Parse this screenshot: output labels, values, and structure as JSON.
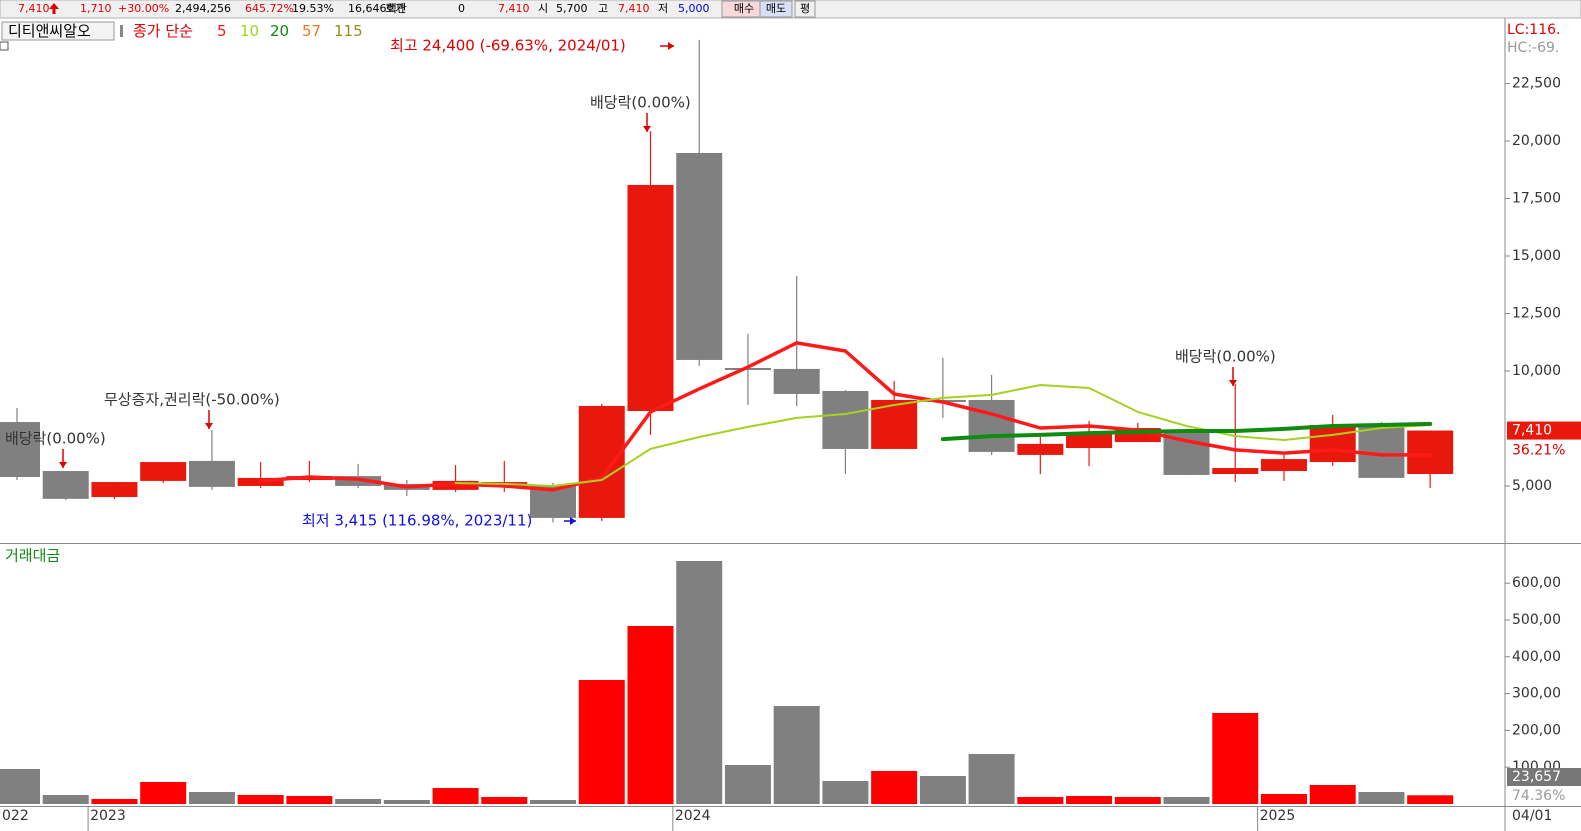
{
  "toolbar": {
    "items": [
      {
        "text": "7,410",
        "color": "#e00000"
      },
      {
        "text": "1,710",
        "color": "#e00000"
      },
      {
        "text": "+30.00%",
        "color": "#e00000"
      },
      {
        "text": "2,494,256",
        "color": "#000000"
      },
      {
        "text": "645.72%",
        "color": "#e00000"
      },
      {
        "text": "19.53%",
        "color": "#000000"
      },
      {
        "text": "16,646백만",
        "color": "#000000"
      },
      {
        "text": "호가",
        "color": "#000000"
      },
      {
        "text": "0",
        "color": "#000000"
      },
      {
        "text": "7,410",
        "color": "#e00000"
      },
      {
        "text": "시",
        "color": "#000000"
      },
      {
        "text": "5,700",
        "color": "#000000"
      },
      {
        "text": "고",
        "color": "#000000"
      },
      {
        "text": "7,410",
        "color": "#e00000"
      },
      {
        "text": "저",
        "color": "#000000"
      },
      {
        "text": "5,000",
        "color": "#0000e0"
      }
    ],
    "buttons": [
      "매수",
      "매도",
      "평"
    ]
  },
  "chart_data": [
    {
      "type": "candlestick",
      "stock": "디티앤씨알오",
      "indicator": "종가 단순",
      "categories": [
        "022",
        null,
        "2023",
        null,
        null,
        null,
        null,
        null,
        null,
        null,
        null,
        null,
        null,
        null,
        "2024",
        null,
        null,
        null,
        null,
        null,
        null,
        null,
        null,
        null,
        null,
        null,
        "2025",
        null,
        null,
        null
      ],
      "date_label": "04/01",
      "open": [
        7780,
        5650,
        4520,
        5220,
        6090,
        5000,
        5260,
        5430,
        5090,
        4830,
        4960,
        5000,
        3610,
        8260,
        19480,
        10130,
        10090,
        9130,
        6610,
        8740,
        8740,
        6350,
        6650,
        6910,
        7430,
        5520,
        5650,
        6040,
        7700,
        5520
      ],
      "high": [
        8390,
        5650,
        5170,
        6040,
        7430,
        6040,
        6090,
        5960,
        5260,
        5910,
        6090,
        5130,
        8570,
        20430,
        24400,
        11610,
        14130,
        9170,
        9570,
        10570,
        9830,
        7130,
        7830,
        7740,
        7480,
        9430,
        6350,
        8090,
        7780,
        7410
      ],
      "low": [
        5260,
        4390,
        4430,
        5130,
        4830,
        4910,
        5170,
        4910,
        4570,
        4740,
        4740,
        3415,
        3480,
        7220,
        10220,
        8520,
        8480,
        5520,
        6610,
        7960,
        6350,
        5520,
        5870,
        6910,
        5480,
        5170,
        5220,
        5870,
        5350,
        4910
      ],
      "close": [
        5390,
        4440,
        5170,
        6040,
        4960,
        5350,
        5430,
        5000,
        4830,
        5220,
        5170,
        3610,
        8480,
        18090,
        10480,
        10090,
        9000,
        6610,
        8740,
        8700,
        6480,
        6830,
        7300,
        7520,
        5480,
        5780,
        6170,
        7650,
        5350,
        7410
      ],
      "up_color": "#e8190c",
      "down_color": "#808080",
      "series": [
        {
          "name": "5",
          "color": "#ff1a1a",
          "values": [
            null,
            null,
            null,
            null,
            null,
            5220,
            5390,
            5300,
            4960,
            5090,
            5000,
            4830,
            5350,
            8220,
            9220,
            10170,
            11220,
            10870,
            9000,
            8650,
            8130,
            7520,
            7610,
            7430,
            6960,
            6570,
            6430,
            6570,
            6350,
            6350
          ]
        },
        {
          "name": "10",
          "color": "#a8d020",
          "values": [
            null,
            null,
            null,
            null,
            null,
            null,
            null,
            null,
            null,
            5130,
            5090,
            5000,
            5260,
            6610,
            7130,
            7570,
            7960,
            8130,
            8520,
            8830,
            8960,
            9390,
            9260,
            8220,
            7610,
            7170,
            7000,
            7220,
            7520,
            7650
          ]
        },
        {
          "name": "20",
          "color": "#108a10",
          "values": [
            null,
            null,
            null,
            null,
            null,
            null,
            null,
            null,
            null,
            null,
            null,
            null,
            null,
            null,
            null,
            null,
            null,
            null,
            null,
            7040,
            7170,
            7220,
            7300,
            7350,
            7390,
            7390,
            7480,
            7610,
            7650,
            7700
          ]
        },
        {
          "name": "57",
          "color": "#f07820",
          "values": [
            null,
            null,
            null,
            null,
            null,
            null,
            null,
            null,
            null,
            null,
            null,
            null,
            null,
            null,
            null,
            null,
            null,
            null,
            null,
            null,
            null,
            null,
            null,
            null,
            null,
            null,
            null,
            null,
            null,
            null
          ]
        },
        {
          "name": "115",
          "color": "#909020",
          "values": [
            null,
            null,
            null,
            null,
            null,
            null,
            null,
            null,
            null,
            null,
            null,
            null,
            null,
            null,
            null,
            null,
            null,
            null,
            null,
            null,
            null,
            null,
            null,
            null,
            null,
            null,
            null,
            null,
            null,
            null
          ]
        }
      ],
      "ylim": [
        2520,
        25350
      ],
      "yticks": [
        {
          "value": 22500,
          "label": "22,500"
        },
        {
          "value": 20000,
          "label": "20,000"
        },
        {
          "value": 17500,
          "label": "17,500"
        },
        {
          "value": 15000,
          "label": "15,000"
        },
        {
          "value": 12500,
          "label": "12,500"
        },
        {
          "value": 10000,
          "label": "10,000"
        },
        {
          "value": 5000,
          "label": "5,000"
        }
      ],
      "lc_label": "LC:116.",
      "hc_label": "HC:-69.",
      "price_tag": "7,410",
      "price_tag_pct": "36.21%",
      "annotations": [
        {
          "text": "배당락(0.00%)",
          "color": "#333333"
        },
        {
          "text": "무상증자,권리락(-50.00%)",
          "color": "#333333"
        },
        {
          "text": "배당락(0.00%)",
          "color": "#333333"
        },
        {
          "text": "최고 24,400 (-69.63%, 2024/01)",
          "color": "#e00000"
        },
        {
          "text": "최저 3,415 (116.98%, 2023/11)",
          "color": "#1010e0"
        },
        {
          "text": "배당락(0.00%)",
          "color": "#333333"
        }
      ]
    },
    {
      "type": "bar",
      "title": "거래대금",
      "title_color": "#108a10",
      "values": [
        95100,
        24500,
        13600,
        59800,
        32600,
        24500,
        21700,
        13600,
        10900,
        43500,
        19000,
        10900,
        337000,
        483700,
        660300,
        106000,
        266300,
        62500,
        89700,
        76100,
        135900,
        19000,
        21700,
        19000,
        19000,
        247300,
        27200,
        51600,
        32600,
        23657
      ],
      "up_color": "#ff0000",
      "down_color": "#808080",
      "ylim": [
        0,
        703800
      ],
      "yticks": [
        {
          "value": 600000,
          "label": "600,00"
        },
        {
          "value": 500000,
          "label": "500,00"
        },
        {
          "value": 400000,
          "label": "400,00"
        },
        {
          "value": 300000,
          "label": "300,00"
        },
        {
          "value": 200000,
          "label": "200,00"
        },
        {
          "value": 100000,
          "label": "100,00"
        }
      ],
      "volume_tag": "23,657",
      "volume_tag_pct": "74.36%"
    }
  ]
}
